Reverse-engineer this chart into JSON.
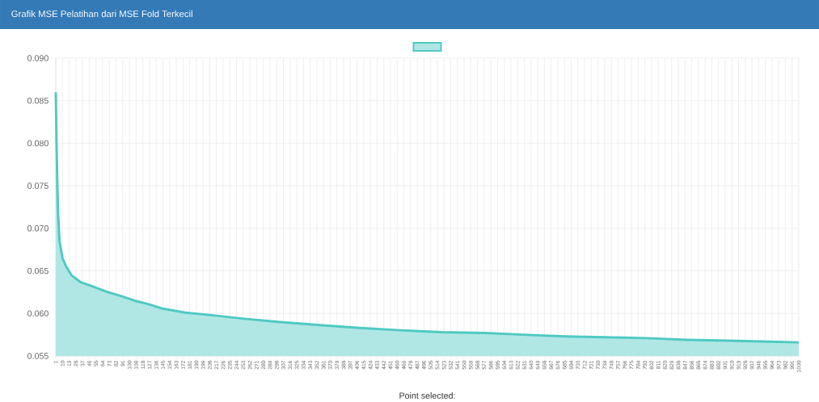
{
  "chart_data": {
    "type": "area",
    "title": "Grafik MSE Pelatihan dari MSE Fold Terkecil",
    "x": [
      1,
      2,
      3,
      4,
      6,
      10,
      15,
      22,
      34,
      50,
      71,
      90,
      107,
      125,
      143,
      175,
      210,
      252,
      300,
      360,
      410,
      469,
      520,
      578,
      630,
      686,
      740,
      795,
      850,
      904,
      950,
      1000
    ],
    "series": [
      {
        "color": "#4fc9c3",
        "values": [
          0.086,
          0.08,
          0.0755,
          0.072,
          0.0685,
          0.0665,
          0.0655,
          0.0645,
          0.0637,
          0.0632,
          0.0625,
          0.062,
          0.0615,
          0.0611,
          0.0606,
          0.0601,
          0.0598,
          0.0594,
          0.059,
          0.0586,
          0.0583,
          0.058,
          0.0578,
          0.0577,
          0.0575,
          0.0573,
          0.0572,
          0.0571,
          0.0569,
          0.0568,
          0.0567,
          0.0566
        ]
      }
    ],
    "xlim": [
      1,
      1000
    ],
    "xticks": [
      1,
      10,
      19,
      28,
      37,
      46,
      55,
      64,
      73,
      82,
      91,
      100,
      109,
      118,
      127,
      136,
      145,
      154,
      163,
      172,
      181,
      190,
      199,
      208,
      217,
      226,
      235,
      244,
      253,
      262,
      271,
      280,
      289,
      298,
      307,
      316,
      325,
      334,
      343,
      352,
      361,
      370,
      379,
      388,
      397,
      406,
      415,
      424,
      433,
      442,
      451,
      460,
      469,
      478,
      487,
      496,
      505,
      514,
      523,
      532,
      541,
      550,
      559,
      568,
      577,
      586,
      595,
      604,
      613,
      622,
      631,
      640,
      649,
      658,
      667,
      676,
      685,
      694,
      703,
      712,
      721,
      730,
      739,
      748,
      757,
      766,
      775,
      784,
      793,
      802,
      811,
      820,
      829,
      838,
      847,
      856,
      865,
      874,
      883,
      892,
      901,
      910,
      919,
      928,
      937,
      946,
      955,
      964,
      973,
      982,
      991,
      1000
    ],
    "ylim": [
      0.055,
      0.09
    ],
    "yticks": [
      {
        "value": 0.055,
        "label": "0.055"
      },
      {
        "value": 0.06,
        "label": "0.060"
      },
      {
        "value": 0.065,
        "label": "0.065"
      },
      {
        "value": 0.07,
        "label": "0.070"
      },
      {
        "value": 0.075,
        "label": "0.075"
      },
      {
        "value": 0.08,
        "label": "0.080"
      },
      {
        "value": 0.085,
        "label": "0.085"
      },
      {
        "value": 0.09,
        "label": "0.090"
      }
    ],
    "grid": true,
    "marker": "none",
    "annotations": [
      "Point selected:"
    ]
  }
}
